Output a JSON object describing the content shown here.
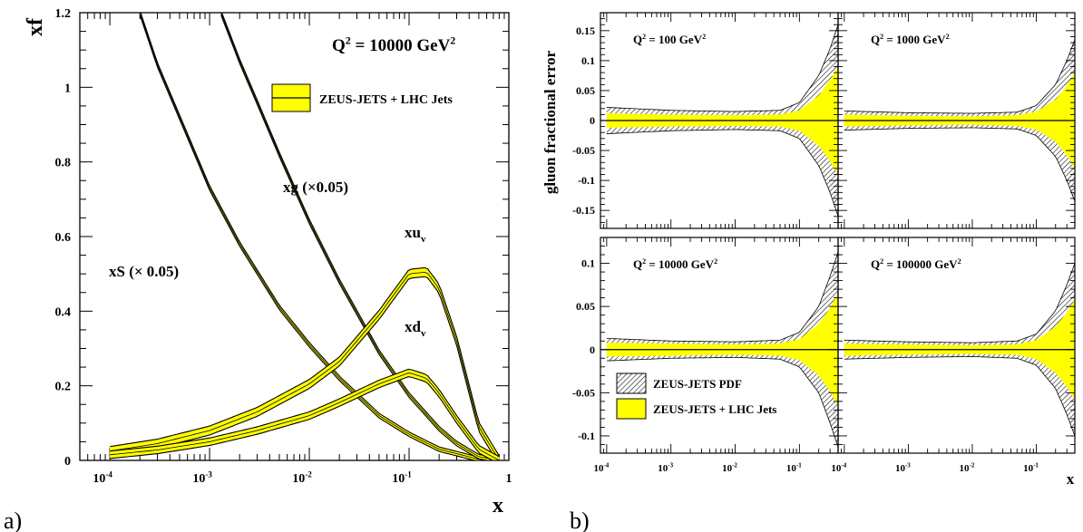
{
  "figure_labels": {
    "a": "a)",
    "b": "b)"
  },
  "chart_data": [
    {
      "panel": "a",
      "type": "line",
      "ylabel": "xf",
      "xlabel": "x",
      "x_scale": "log",
      "xlim": [
        5e-05,
        1
      ],
      "ylim": [
        0,
        1.2
      ],
      "x_ticks": [
        0.0001,
        0.001,
        0.01,
        0.1,
        1
      ],
      "x_tick_labels": [
        {
          "base": "10",
          "exp": "-4"
        },
        {
          "base": "10",
          "exp": "-3"
        },
        {
          "base": "10",
          "exp": "-2"
        },
        {
          "base": "10",
          "exp": "-1"
        },
        {
          "base": "1",
          "exp": ""
        }
      ],
      "y_ticks": [
        0,
        0.2,
        0.4,
        0.6,
        0.8,
        1,
        1.2
      ],
      "y_tick_labels": [
        "0",
        "0.2",
        "0.4",
        "0.6",
        "0.8",
        "1",
        "1.2"
      ],
      "q2_label": {
        "prefix": "Q",
        "sup": "2",
        "mid": " = 10000 GeV",
        "sup2": "2"
      },
      "legend": {
        "entry": "ZEUS-JETS + LHC Jets",
        "placement": "top-right"
      },
      "curve_labels": {
        "xg": "xg (×0.05)",
        "xs": "xS (× 0.05)",
        "xuv": {
          "main": "xu",
          "sub": "v"
        },
        "xdv": {
          "main": "xd",
          "sub": "v"
        }
      },
      "series": [
        {
          "key": "xS",
          "band": 0.006,
          "x": [
            0.0002,
            0.0003,
            0.0005,
            0.001,
            0.002,
            0.005,
            0.01,
            0.02,
            0.05,
            0.1,
            0.2,
            0.5,
            0.8
          ],
          "y": [
            1.2,
            1.06,
            0.92,
            0.73,
            0.58,
            0.41,
            0.31,
            0.22,
            0.12,
            0.07,
            0.03,
            0.003,
            0
          ]
        },
        {
          "key": "xg",
          "band": 0.006,
          "x": [
            0.0013,
            0.002,
            0.003,
            0.005,
            0.01,
            0.02,
            0.05,
            0.1,
            0.2,
            0.3,
            0.5,
            0.8
          ],
          "y": [
            1.2,
            1.07,
            0.96,
            0.82,
            0.64,
            0.48,
            0.29,
            0.175,
            0.085,
            0.045,
            0.01,
            0
          ]
        },
        {
          "key": "xuv",
          "band": 0.012,
          "x": [
            0.0001,
            0.0003,
            0.001,
            0.003,
            0.01,
            0.02,
            0.05,
            0.1,
            0.15,
            0.2,
            0.3,
            0.5,
            0.8
          ],
          "y": [
            0.025,
            0.045,
            0.08,
            0.13,
            0.205,
            0.265,
            0.39,
            0.5,
            0.505,
            0.46,
            0.32,
            0.09,
            0
          ]
        },
        {
          "key": "xdv",
          "band": 0.01,
          "x": [
            0.0001,
            0.0003,
            0.001,
            0.003,
            0.01,
            0.02,
            0.05,
            0.1,
            0.15,
            0.2,
            0.3,
            0.5,
            0.8
          ],
          "y": [
            0.015,
            0.028,
            0.05,
            0.08,
            0.12,
            0.155,
            0.205,
            0.235,
            0.22,
            0.18,
            0.11,
            0.03,
            0
          ]
        }
      ]
    },
    {
      "panel": "b",
      "type": "area",
      "ylabel": "gluon fractional error",
      "xlabel": "x",
      "x_scale": "log",
      "xlim": [
        8e-05,
        0.4
      ],
      "x_ticks": [
        0.0001,
        0.001,
        0.01,
        0.1
      ],
      "x_tick_labels": [
        {
          "base": "10",
          "exp": "-4"
        },
        {
          "base": "10",
          "exp": "-3"
        },
        {
          "base": "10",
          "exp": "-2"
        },
        {
          "base": "10",
          "exp": "-1"
        }
      ],
      "legend": [
        {
          "label": "ZEUS-JETS PDF",
          "style": "hatched"
        },
        {
          "label": "ZEUS-JETS + LHC Jets",
          "style": "yellow"
        }
      ],
      "colors": {
        "band": "#ffff00"
      },
      "subplots": [
        {
          "q2": {
            "prefix": "Q",
            "sup": "2",
            "mid": " = 100 GeV",
            "sup2": "2"
          },
          "ylim": [
            -0.18,
            0.18
          ],
          "y_ticks": [
            -0.15,
            -0.1,
            -0.05,
            0,
            0.05,
            0.1,
            0.15
          ],
          "y_tick_labels": [
            "-0.15",
            "-0.1",
            "-0.05",
            "0",
            "0.05",
            "0.1",
            "0.15"
          ],
          "x": [
            0.0001,
            0.001,
            0.01,
            0.05,
            0.1,
            0.2,
            0.3,
            0.4
          ],
          "pdf_err": [
            0.022,
            0.017,
            0.015,
            0.017,
            0.03,
            0.075,
            0.12,
            0.16
          ],
          "lhc_err": [
            0.012,
            0.01,
            0.009,
            0.01,
            0.017,
            0.042,
            0.068,
            0.09
          ]
        },
        {
          "q2": {
            "prefix": "Q",
            "sup": "2",
            "mid": " = 1000 GeV",
            "sup2": "2"
          },
          "ylim": [
            -0.18,
            0.18
          ],
          "y_ticks": [
            -0.15,
            -0.1,
            -0.05,
            0,
            0.05,
            0.1,
            0.15
          ],
          "y_tick_labels": [
            "-0.15",
            "-0.1",
            "-0.05",
            "0",
            "0.05",
            "0.1",
            "0.15"
          ],
          "x": [
            0.0001,
            0.001,
            0.01,
            0.05,
            0.1,
            0.2,
            0.3,
            0.4
          ],
          "pdf_err": [
            0.016,
            0.013,
            0.012,
            0.014,
            0.025,
            0.06,
            0.1,
            0.135
          ],
          "lhc_err": [
            0.01,
            0.008,
            0.007,
            0.009,
            0.015,
            0.035,
            0.058,
            0.08
          ]
        },
        {
          "q2": {
            "prefix": "Q",
            "sup": "2",
            "mid": " = 10000 GeV",
            "sup2": "2"
          },
          "ylim": [
            -0.12,
            0.13
          ],
          "y_ticks": [
            -0.1,
            -0.05,
            0,
            0.05,
            0.1
          ],
          "y_tick_labels": [
            "-0.1",
            "-0.05",
            "0",
            "0.05",
            "0.1"
          ],
          "x": [
            0.0001,
            0.001,
            0.01,
            0.05,
            0.1,
            0.2,
            0.3,
            0.4
          ],
          "pdf_err": [
            0.013,
            0.01,
            0.009,
            0.011,
            0.02,
            0.05,
            0.085,
            0.113
          ],
          "lhc_err": [
            0.008,
            0.007,
            0.006,
            0.007,
            0.012,
            0.03,
            0.048,
            0.066
          ]
        },
        {
          "q2": {
            "prefix": "Q",
            "sup": "2",
            "mid": " = 100000 GeV",
            "sup2": "2"
          },
          "ylim": [
            -0.12,
            0.13
          ],
          "y_ticks": [
            -0.1,
            -0.05,
            0,
            0.05,
            0.1
          ],
          "y_tick_labels": [
            "-0.1",
            "-0.05",
            "0",
            "0.05",
            "0.1"
          ],
          "x": [
            0.0001,
            0.001,
            0.01,
            0.05,
            0.1,
            0.2,
            0.3,
            0.4
          ],
          "pdf_err": [
            0.011,
            0.009,
            0.008,
            0.01,
            0.018,
            0.045,
            0.075,
            0.1
          ],
          "lhc_err": [
            0.007,
            0.006,
            0.005,
            0.006,
            0.011,
            0.027,
            0.043,
            0.058
          ]
        }
      ]
    }
  ]
}
